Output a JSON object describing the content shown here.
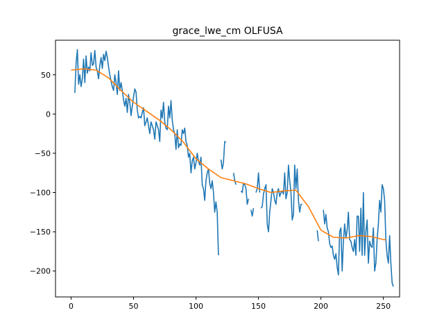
{
  "chart_data": {
    "type": "line",
    "title": "grace_lwe_cm OLFUSA",
    "xlabel": "",
    "ylabel": "",
    "xlim": [
      -12.5,
      263
    ],
    "ylim": [
      -233,
      94
    ],
    "xticks": [
      0,
      50,
      100,
      150,
      200,
      250
    ],
    "yticks": [
      -200,
      -150,
      -100,
      -50,
      0,
      50
    ],
    "grid": false,
    "legend": "none",
    "series": [
      {
        "color": "#1f77b4",
        "segments": [
          [
            [
              3,
              27
            ],
            [
              4,
              65
            ],
            [
              5,
              82
            ],
            [
              6,
              38
            ],
            [
              7,
              50
            ],
            [
              8,
              35
            ],
            [
              9,
              45
            ],
            [
              10,
              70
            ],
            [
              11,
              40
            ],
            [
              12,
              74
            ],
            [
              13,
              52
            ],
            [
              14,
              60
            ],
            [
              15,
              55
            ],
            [
              16,
              78
            ],
            [
              17,
              62
            ],
            [
              18,
              64
            ],
            [
              19,
              81
            ],
            [
              20,
              60
            ],
            [
              21,
              55
            ],
            [
              22,
              45
            ],
            [
              23,
              62
            ],
            [
              24,
              72
            ],
            [
              25,
              58
            ],
            [
              26,
              76
            ],
            [
              27,
              68
            ],
            [
              28,
              80
            ],
            [
              29,
              72
            ],
            [
              30,
              60
            ],
            [
              31,
              50
            ],
            [
              32,
              42
            ],
            [
              33,
              35
            ],
            [
              34,
              30
            ],
            [
              35,
              50
            ],
            [
              36,
              40
            ],
            [
              37,
              25
            ],
            [
              38,
              55
            ],
            [
              39,
              30
            ],
            [
              40,
              40
            ],
            [
              41,
              30
            ],
            [
              42,
              18
            ],
            [
              43,
              10
            ],
            [
              44,
              20
            ],
            [
              45,
              2
            ],
            [
              46,
              25
            ],
            [
              47,
              15
            ],
            [
              48,
              -2
            ],
            [
              49,
              10
            ],
            [
              50,
              22
            ],
            [
              51,
              32
            ],
            [
              52,
              28
            ],
            [
              53,
              5
            ],
            [
              54,
              -5
            ],
            [
              55,
              -3
            ],
            [
              56,
              -5
            ],
            [
              57,
              2
            ],
            [
              58,
              8
            ],
            [
              59,
              -15
            ],
            [
              60,
              -10
            ],
            [
              61,
              -5
            ],
            [
              62,
              -15
            ],
            [
              63,
              -25
            ],
            [
              64,
              -10
            ],
            [
              65,
              -15
            ],
            [
              66,
              -20
            ],
            [
              67,
              -32
            ],
            [
              68,
              -10
            ],
            [
              69,
              -15
            ],
            [
              70,
              -20
            ],
            [
              71,
              -35
            ],
            [
              72,
              5
            ],
            [
              73,
              -5
            ],
            [
              74,
              15
            ],
            [
              75,
              -10
            ],
            [
              76,
              -18
            ],
            [
              77,
              -20
            ],
            [
              78,
              10
            ],
            [
              79,
              -5
            ],
            [
              80,
              17
            ],
            [
              81,
              -8
            ],
            [
              82,
              -20
            ],
            [
              83,
              -25
            ],
            [
              84,
              -45
            ],
            [
              85,
              -20
            ],
            [
              86,
              -43
            ],
            [
              87,
              -38
            ],
            [
              88,
              -40
            ],
            [
              89,
              -20
            ],
            [
              90,
              -25
            ],
            [
              91,
              -18
            ],
            [
              92,
              -35
            ],
            [
              93,
              -40
            ],
            [
              94,
              -55
            ],
            [
              95,
              -50
            ],
            [
              96,
              -75
            ],
            [
              97,
              -60
            ],
            [
              98,
              -55
            ],
            [
              99,
              -70
            ],
            [
              100,
              -62
            ],
            [
              101,
              -50
            ],
            [
              102,
              -60
            ],
            [
              103,
              -65
            ],
            [
              104,
              -55
            ],
            [
              105,
              -90
            ],
            [
              106,
              -95
            ],
            [
              107,
              -110
            ],
            [
              108,
              -85
            ],
            [
              109,
              -75
            ],
            [
              110,
              -70
            ],
            [
              111,
              -88
            ],
            [
              112,
              -95
            ],
            [
              113,
              -85
            ],
            [
              114,
              -100
            ],
            [
              115,
              -125
            ],
            [
              116,
              -112
            ],
            [
              117,
              -125
            ],
            [
              118,
              -180
            ]
          ],
          [
            [
              120,
              -58
            ],
            [
              121,
              -70
            ],
            [
              122,
              -62
            ],
            [
              123,
              -35
            ],
            [
              124,
              -36
            ]
          ],
          [
            [
              130,
              -75
            ],
            [
              131,
              -85
            ],
            [
              132,
              -90
            ]
          ],
          [
            [
              136,
              -98
            ],
            [
              137,
              -100
            ],
            [
              138,
              -88
            ],
            [
              139,
              -90
            ],
            [
              140,
              -95
            ],
            [
              141,
              -115
            ],
            [
              142,
              -108
            ]
          ],
          [
            [
              144,
              -122
            ],
            [
              145,
              -130
            ],
            [
              146,
              -120
            ]
          ],
          [
            [
              148,
              -100
            ],
            [
              149,
              -95
            ],
            [
              150,
              -75
            ],
            [
              151,
              -100
            ]
          ],
          [
            [
              152,
              -120
            ],
            [
              153,
              -118
            ],
            [
              154,
              -102
            ],
            [
              155,
              -95
            ],
            [
              156,
              -90
            ],
            [
              157,
              -140
            ],
            [
              158,
              -150
            ],
            [
              159,
              -125
            ],
            [
              160,
              -110
            ],
            [
              161,
              -95
            ],
            [
              162,
              -100
            ],
            [
              163,
              -110
            ],
            [
              164,
              -115
            ],
            [
              165,
              -100
            ],
            [
              166,
              -95
            ],
            [
              167,
              -105
            ],
            [
              168,
              -100
            ],
            [
              169,
              -98
            ],
            [
              170,
              -102
            ],
            [
              171,
              -75
            ],
            [
              172,
              -108
            ],
            [
              173,
              -100
            ],
            [
              174,
              -65
            ],
            [
              175,
              -85
            ],
            [
              176,
              -100
            ],
            [
              177,
              -135
            ],
            [
              178,
              -128
            ],
            [
              179,
              -65
            ],
            [
              180,
              -95
            ],
            [
              181,
              -70
            ],
            [
              182,
              -110
            ],
            [
              183,
              -125
            ],
            [
              184,
              -115
            ],
            [
              185,
              -115
            ]
          ],
          [
            [
              197,
              -148
            ],
            [
              198,
              -162
            ]
          ],
          [
            [
              202,
              -122
            ],
            [
              203,
              -140
            ],
            [
              204,
              -128
            ],
            [
              205,
              -145
            ],
            [
              206,
              -150
            ],
            [
              207,
              -165
            ],
            [
              208,
              -170
            ],
            [
              209,
              -168
            ],
            [
              210,
              -180
            ],
            [
              211,
              -185
            ],
            [
              212,
              -178
            ],
            [
              213,
              -195
            ],
            [
              214,
              -205
            ],
            [
              215,
              -150
            ],
            [
              216,
              -145
            ],
            [
              217,
              -200
            ],
            [
              218,
              -162
            ],
            [
              219,
              -140
            ],
            [
              220,
              -158
            ],
            [
              221,
              -148
            ],
            [
              222,
              -125
            ],
            [
              223,
              -160
            ],
            [
              224,
              -162
            ],
            [
              225,
              -170
            ],
            [
              226,
              -175
            ],
            [
              227,
              -160
            ],
            [
              228,
              -180
            ],
            [
              229,
              -130
            ],
            [
              230,
              -130
            ],
            [
              231,
              -175
            ],
            [
              232,
              -120
            ],
            [
              233,
              -180
            ],
            [
              234,
              -100
            ],
            [
              235,
              -180
            ],
            [
              236,
              -150
            ],
            [
              237,
              -135
            ],
            [
              238,
              -190
            ],
            [
              239,
              -162
            ],
            [
              240,
              -168
            ],
            [
              241,
              -170
            ],
            [
              242,
              -145
            ],
            [
              243,
              -200
            ],
            [
              244,
              -190
            ],
            [
              245,
              -160
            ],
            [
              246,
              -140
            ],
            [
              247,
              -110
            ],
            [
              248,
              -125
            ],
            [
              249,
              -90
            ],
            [
              250,
              -95
            ],
            [
              251,
              -110
            ],
            [
              252,
              -160
            ],
            [
              253,
              -180
            ],
            [
              254,
              -190
            ],
            [
              255,
              -155
            ],
            [
              256,
              -190
            ],
            [
              257,
              -215
            ],
            [
              258,
              -220
            ]
          ]
        ]
      },
      {
        "color": "#ff7f0e",
        "segments": [
          [
            [
              0,
              56
            ],
            [
              10,
              57.5
            ],
            [
              20,
              56
            ],
            [
              30,
              46
            ],
            [
              40,
              30
            ],
            [
              50,
              15
            ],
            [
              60,
              4
            ],
            [
              70,
              -7
            ],
            [
              80,
              -20
            ],
            [
              90,
              -36
            ],
            [
              100,
              -57
            ],
            [
              110,
              -70
            ],
            [
              120,
              -81
            ],
            [
              130,
              -85
            ],
            [
              140,
              -89
            ],
            [
              150,
              -95
            ],
            [
              160,
              -100
            ],
            [
              170,
              -98
            ],
            [
              180,
              -97
            ],
            [
              190,
              -118
            ],
            [
              200,
              -148
            ],
            [
              210,
              -157
            ],
            [
              220,
              -158
            ],
            [
              230,
              -155
            ],
            [
              240,
              -156
            ],
            [
              250,
              -160
            ],
            [
              252,
              -160
            ]
          ]
        ]
      }
    ]
  }
}
